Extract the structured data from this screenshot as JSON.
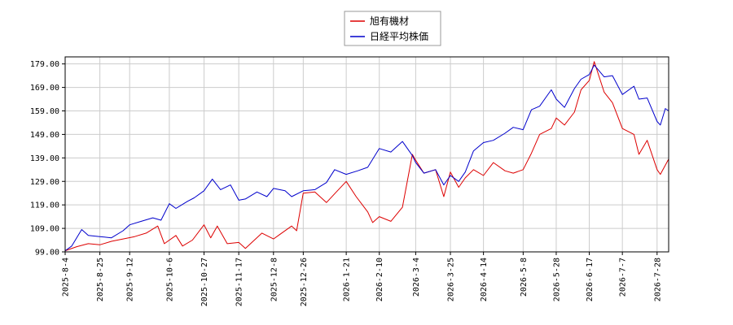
{
  "chart_data": {
    "type": "line",
    "title": "",
    "xlabel": "",
    "ylabel": "",
    "ylim": [
      99.0,
      182.0
    ],
    "y_ticks": [
      "99.00",
      "109.00",
      "119.00",
      "129.00",
      "139.00",
      "149.00",
      "159.00",
      "169.00",
      "179.00"
    ],
    "x_ticks": [
      "2025-8-4",
      "2025-8-25",
      "2025-9-12",
      "2025-10-6",
      "2025-10-27",
      "2025-11-17",
      "2025-12-8",
      "2025-12-26",
      "2026-1-21",
      "2026-2-10",
      "2026-3-4",
      "2026-3-25",
      "2026-4-14",
      "2026-5-8",
      "2026-5-28",
      "2026-6-17",
      "2026-7-7",
      "2026-7-28"
    ],
    "grid": true,
    "legend": "top-center",
    "x_start": "2025-8-4",
    "x_end": "2026-8-4",
    "series": [
      {
        "name": "旭有機材",
        "color": "#dd0000",
        "points": [
          [
            "2025-8-4",
            99.5
          ],
          [
            "2025-8-11",
            101.2
          ],
          [
            "2025-8-18",
            102.5
          ],
          [
            "2025-8-25",
            102.0
          ],
          [
            "2025-9-1",
            103.5
          ],
          [
            "2025-9-8",
            104.5
          ],
          [
            "2025-9-15",
            105.5
          ],
          [
            "2025-9-22",
            107.0
          ],
          [
            "2025-9-29",
            110.0
          ],
          [
            "2025-10-3",
            102.5
          ],
          [
            "2025-10-10",
            106.0
          ],
          [
            "2025-10-14",
            101.5
          ],
          [
            "2025-10-20",
            104.0
          ],
          [
            "2025-10-27",
            110.5
          ],
          [
            "2025-10-31",
            105.0
          ],
          [
            "2025-11-4",
            110.0
          ],
          [
            "2025-11-10",
            102.5
          ],
          [
            "2025-11-17",
            103.0
          ],
          [
            "2025-11-21",
            100.5
          ],
          [
            "2025-12-1",
            107.0
          ],
          [
            "2025-12-8",
            104.5
          ],
          [
            "2025-12-12",
            106.5
          ],
          [
            "2025-12-19",
            110.0
          ],
          [
            "2025-12-22",
            108.0
          ],
          [
            "2025-12-26",
            124.0
          ],
          [
            "2026-1-2",
            124.5
          ],
          [
            "2026-1-9",
            120.0
          ],
          [
            "2026-1-15",
            124.5
          ],
          [
            "2026-1-21",
            129.0
          ],
          [
            "2026-1-27",
            122.5
          ],
          [
            "2026-2-3",
            116.0
          ],
          [
            "2026-2-6",
            111.5
          ],
          [
            "2026-2-10",
            114.0
          ],
          [
            "2026-2-17",
            112.0
          ],
          [
            "2026-2-24",
            118.0
          ],
          [
            "2026-3-2",
            140.5
          ],
          [
            "2026-3-4",
            138.0
          ],
          [
            "2026-3-9",
            132.5
          ],
          [
            "2026-3-16",
            134.0
          ],
          [
            "2026-3-21",
            122.5
          ],
          [
            "2026-3-25",
            133.0
          ],
          [
            "2026-3-30",
            126.5
          ],
          [
            "2026-4-3",
            130.5
          ],
          [
            "2026-4-8",
            134.0
          ],
          [
            "2026-4-14",
            131.5
          ],
          [
            "2026-4-20",
            137.0
          ],
          [
            "2026-4-27",
            133.5
          ],
          [
            "2026-5-2",
            132.5
          ],
          [
            "2026-5-8",
            134.0
          ],
          [
            "2026-5-13",
            141.0
          ],
          [
            "2026-5-18",
            149.0
          ],
          [
            "2026-5-25",
            151.5
          ],
          [
            "2026-5-28",
            156.0
          ],
          [
            "2026-6-2",
            153.0
          ],
          [
            "2026-6-8",
            158.5
          ],
          [
            "2026-6-12",
            168.0
          ],
          [
            "2026-6-17",
            172.0
          ],
          [
            "2026-6-20",
            180.0
          ],
          [
            "2026-6-26",
            167.0
          ],
          [
            "2026-7-1",
            162.5
          ],
          [
            "2026-7-7",
            151.5
          ],
          [
            "2026-7-14",
            149.0
          ],
          [
            "2026-7-17",
            140.5
          ],
          [
            "2026-7-22",
            146.5
          ],
          [
            "2026-7-28",
            134.0
          ],
          [
            "2026-7-30",
            132.0
          ],
          [
            "2026-8-4",
            138.5
          ]
        ]
      },
      {
        "name": "日経平均株価",
        "color": "#0000cc",
        "points": [
          [
            "2025-8-4",
            99.5
          ],
          [
            "2025-8-8",
            101.5
          ],
          [
            "2025-8-14",
            108.5
          ],
          [
            "2025-8-18",
            106.0
          ],
          [
            "2025-8-25",
            105.5
          ],
          [
            "2025-9-1",
            105.0
          ],
          [
            "2025-9-8",
            108.0
          ],
          [
            "2025-9-12",
            110.5
          ],
          [
            "2025-9-19",
            112.0
          ],
          [
            "2025-9-26",
            113.5
          ],
          [
            "2025-10-1",
            112.5
          ],
          [
            "2025-10-6",
            119.5
          ],
          [
            "2025-10-10",
            117.5
          ],
          [
            "2025-10-17",
            120.5
          ],
          [
            "2025-10-21",
            122.0
          ],
          [
            "2025-10-27",
            125.0
          ],
          [
            "2025-11-1",
            130.0
          ],
          [
            "2025-11-6",
            125.5
          ],
          [
            "2025-11-12",
            127.5
          ],
          [
            "2025-11-17",
            121.0
          ],
          [
            "2025-11-21",
            121.5
          ],
          [
            "2025-11-28",
            124.5
          ],
          [
            "2025-12-4",
            122.5
          ],
          [
            "2025-12-8",
            126.0
          ],
          [
            "2025-12-15",
            125.0
          ],
          [
            "2025-12-19",
            122.5
          ],
          [
            "2025-12-26",
            125.0
          ],
          [
            "2026-1-2",
            125.5
          ],
          [
            "2026-1-9",
            128.5
          ],
          [
            "2026-1-14",
            134.0
          ],
          [
            "2026-1-21",
            132.0
          ],
          [
            "2026-1-28",
            133.5
          ],
          [
            "2026-2-3",
            135.0
          ],
          [
            "2026-2-10",
            143.0
          ],
          [
            "2026-2-17",
            141.5
          ],
          [
            "2026-2-24",
            146.0
          ],
          [
            "2026-3-2",
            140.0
          ],
          [
            "2026-3-4",
            137.0
          ],
          [
            "2026-3-9",
            132.5
          ],
          [
            "2026-3-16",
            134.0
          ],
          [
            "2026-3-21",
            127.5
          ],
          [
            "2026-3-25",
            131.5
          ],
          [
            "2026-3-30",
            129.0
          ],
          [
            "2026-4-3",
            133.0
          ],
          [
            "2026-4-8",
            142.0
          ],
          [
            "2026-4-14",
            145.5
          ],
          [
            "2026-4-20",
            146.5
          ],
          [
            "2026-4-27",
            149.5
          ],
          [
            "2026-5-2",
            152.0
          ],
          [
            "2026-5-8",
            151.0
          ],
          [
            "2026-5-13",
            159.5
          ],
          [
            "2026-5-18",
            161.0
          ],
          [
            "2026-5-25",
            168.0
          ],
          [
            "2026-5-28",
            164.0
          ],
          [
            "2026-6-2",
            160.5
          ],
          [
            "2026-6-8",
            168.5
          ],
          [
            "2026-6-12",
            172.5
          ],
          [
            "2026-6-17",
            174.5
          ],
          [
            "2026-6-20",
            178.5
          ],
          [
            "2026-6-26",
            173.5
          ],
          [
            "2026-7-1",
            174.0
          ],
          [
            "2026-7-7",
            166.0
          ],
          [
            "2026-7-14",
            169.5
          ],
          [
            "2026-7-17",
            164.0
          ],
          [
            "2026-7-22",
            164.5
          ],
          [
            "2026-7-28",
            154.5
          ],
          [
            "2026-7-30",
            153.0
          ],
          [
            "2026-8-2",
            160.0
          ],
          [
            "2026-8-4",
            159.0
          ]
        ]
      }
    ]
  }
}
